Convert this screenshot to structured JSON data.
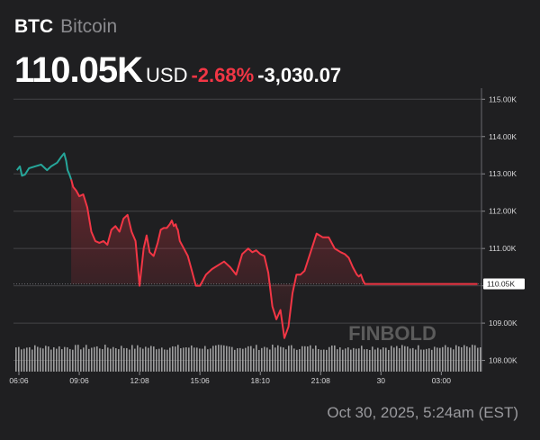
{
  "header": {
    "symbol": "BTC",
    "asset_name": "Bitcoin",
    "price": "110.05K",
    "currency": "USD",
    "change_pct": "-2.68%",
    "change_abs": "-3,030.07"
  },
  "footer": {
    "timestamp": "Oct 30, 2025, 5:24am (EST)"
  },
  "watermark": "FINBOLD",
  "colors": {
    "background": "#1f1f21",
    "up": "#26a69a",
    "down": "#f23645",
    "volume": "#b5b5b5",
    "grid": "#4a4a4d"
  },
  "chart_data": {
    "type": "line",
    "ylim": [
      107.7,
      115.2
    ],
    "y_unit": "K USD",
    "yticks": [
      "115.00K",
      "114.00K",
      "113.00K",
      "112.00K",
      "111.00K",
      "110.00K",
      "109.00K",
      "108.00K"
    ],
    "ytick_values": [
      115,
      114,
      113,
      112,
      111,
      110,
      109,
      108
    ],
    "xticks": [
      "06:06",
      "09:06",
      "12:08",
      "15:06",
      "18:10",
      "21:08",
      "30",
      "03:00"
    ],
    "xtick_positions": [
      0,
      3,
      6,
      9,
      12,
      15,
      18,
      21
    ],
    "x_unit": "hours from first tick",
    "current_label": "110.05K",
    "current_value": 110.05,
    "reference_value": 110.05,
    "series": [
      {
        "x": [
          -0.1,
          0.05,
          0.15,
          0.3,
          0.5,
          0.8,
          1.1,
          1.4,
          1.6,
          1.9,
          2.1,
          2.25,
          2.35,
          2.42,
          2.5,
          2.6,
          2.7,
          2.85,
          3.0,
          3.2,
          3.4,
          3.6,
          3.8,
          4.0,
          4.2,
          4.4,
          4.6,
          4.8,
          5.0,
          5.2,
          5.4,
          5.6,
          5.8,
          6.0,
          6.2,
          6.35,
          6.5,
          6.7,
          6.9,
          7.05,
          7.2,
          7.35,
          7.5,
          7.6,
          7.7,
          7.8,
          7.85,
          7.9,
          8.0,
          8.2,
          8.4,
          8.6,
          8.7,
          8.8,
          9.0,
          9.3,
          9.6,
          9.9,
          10.2,
          10.5,
          10.8,
          11.1,
          11.4,
          11.6,
          11.8,
          12.0,
          12.2,
          12.4,
          12.6,
          12.8,
          13.0,
          13.2,
          13.4,
          13.6,
          13.8,
          14.0,
          14.2,
          14.5,
          14.8,
          15.1,
          15.4,
          15.7,
          16.0,
          16.2,
          16.4,
          16.6,
          16.8,
          16.9,
          17.0,
          17.1,
          17.2,
          17.3,
          17.4,
          17.5,
          17.6,
          17.7,
          17.8,
          18.0,
          18.2,
          18.4,
          18.6,
          18.8,
          18.9,
          19.0,
          19.2,
          19.4,
          19.6,
          19.8,
          20.0,
          20.2,
          20.4,
          20.6,
          20.8,
          21.0,
          21.2,
          21.4,
          21.6,
          21.8,
          22.0,
          22.2,
          22.4,
          22.6,
          22.8
        ],
        "values": [
          113.1,
          113.2,
          112.95,
          112.98,
          113.15,
          113.2,
          113.25,
          113.1,
          113.2,
          113.3,
          113.45,
          113.55,
          113.35,
          113.1,
          113.0,
          112.85,
          112.65,
          112.55,
          112.4,
          112.45,
          112.1,
          111.45,
          111.2,
          111.15,
          111.2,
          111.1,
          111.5,
          111.6,
          111.45,
          111.8,
          111.9,
          111.45,
          111.2,
          110.0,
          111.0,
          111.35,
          110.9,
          110.8,
          111.15,
          111.5,
          111.55,
          111.55,
          111.65,
          111.75,
          111.6,
          111.65,
          111.55,
          111.5,
          111.2,
          111.0,
          110.8,
          110.4,
          110.2,
          110.0,
          110.0,
          110.3,
          110.45,
          110.55,
          110.65,
          110.5,
          110.3,
          110.85,
          111.0,
          110.9,
          110.95,
          110.85,
          110.8,
          110.35,
          109.45,
          109.1,
          109.35,
          108.6,
          108.9,
          109.8,
          110.3,
          110.3,
          110.4,
          110.9,
          111.4,
          111.3,
          111.3,
          111.0,
          110.9,
          110.85,
          110.75,
          110.5,
          110.3,
          110.25,
          110.3,
          110.15,
          110.05,
          110.05,
          110.05,
          110.05,
          110.05,
          110.05,
          110.05,
          110.05,
          110.05,
          110.05,
          110.05,
          110.05,
          110.05,
          110.05,
          110.05,
          110.05,
          110.05,
          110.05,
          110.05,
          110.05,
          110.05,
          110.05,
          110.05,
          110.05,
          110.05,
          110.05,
          110.05,
          110.05,
          110.05,
          110.05,
          110.05,
          110.05,
          110.05
        ]
      }
    ],
    "grid": true
  }
}
